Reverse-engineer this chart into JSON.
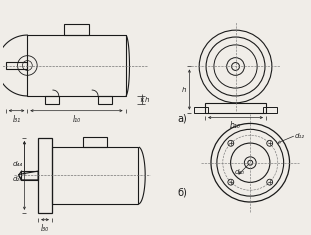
{
  "bg_color": "#f0ede8",
  "line_color": "#1a1a1a",
  "dim_color": "#222222",
  "title_a": "a)",
  "title_b": "б)",
  "lbl_l31": "l₃₁",
  "lbl_l10": "l₁₀",
  "lbl_h": "h",
  "lbl_b10": "b₁₀",
  "lbl_d44": "d₄₄",
  "lbl_d25": "d₂₅",
  "lbl_l30": "l₃₀",
  "lbl_d20": "d₂₀",
  "lbl_d12": "d₁₂"
}
